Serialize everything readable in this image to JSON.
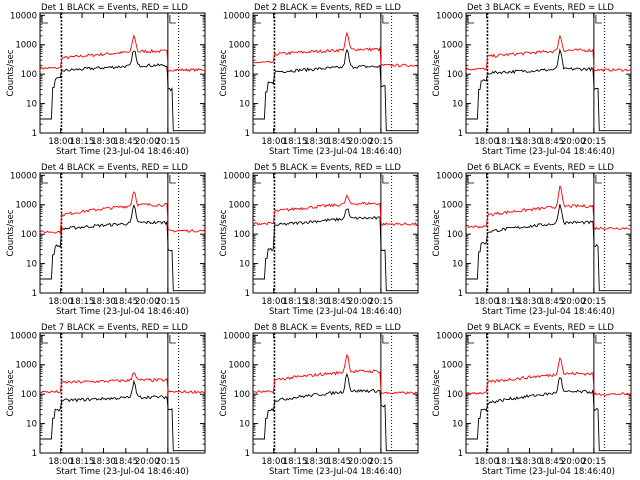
{
  "chart_data": {
    "type": "line",
    "layout": "3x3 grid of detector panels",
    "xlabel": "Start Time (23-Jul-04 18:46:40)",
    "ylabel": "Counts/sec",
    "yscale": "log",
    "ylim": [
      1,
      12000
    ],
    "ytick_labels": [
      "1",
      "10",
      "100",
      "1000",
      "10000"
    ],
    "ytick_values": [
      1,
      10,
      100,
      1000,
      10000
    ],
    "xtick_labels": [
      "18:00",
      "18:15",
      "18:30",
      "18:45",
      "20:00",
      "20:15"
    ],
    "legend_text": "BLACK = Events, RED = LLD",
    "series_colors": {
      "events": "#000000",
      "lld": "#ff0000"
    },
    "panels": [
      {
        "title": "Det 1",
        "events": {
          "pre": 70,
          "base": 130,
          "mid": 200,
          "peak": 700,
          "post": 30
        },
        "lld": {
          "pre": 160,
          "base": 350,
          "mid": 600,
          "peak": 2000,
          "post": 140
        }
      },
      {
        "title": "Det 2",
        "events": {
          "pre": 50,
          "base": 120,
          "mid": 180,
          "peak": 650,
          "post": 40
        },
        "lld": {
          "pre": 250,
          "base": 480,
          "mid": 700,
          "peak": 2300,
          "post": 200
        }
      },
      {
        "title": "Det 3",
        "events": {
          "pre": 60,
          "base": 110,
          "mid": 150,
          "peak": 600,
          "post": 30
        },
        "lld": {
          "pre": 150,
          "base": 400,
          "mid": 650,
          "peak": 2000,
          "post": 140
        }
      },
      {
        "title": "Det 4",
        "events": {
          "pre": 40,
          "base": 150,
          "mid": 250,
          "peak": 900,
          "post": 30
        },
        "lld": {
          "pre": 120,
          "base": 450,
          "mid": 1000,
          "peak": 3000,
          "post": 130
        }
      },
      {
        "title": "Det 5",
        "events": {
          "pre": 30,
          "base": 200,
          "mid": 350,
          "peak": 800,
          "post": 30
        },
        "lld": {
          "pre": 230,
          "base": 600,
          "mid": 1100,
          "peak": 2000,
          "post": 220
        }
      },
      {
        "title": "Det 6",
        "events": {
          "pre": 50,
          "base": 120,
          "mid": 250,
          "peak": 1000,
          "post": 40
        },
        "lld": {
          "pre": 180,
          "base": 450,
          "mid": 900,
          "peak": 4000,
          "post": 160
        }
      },
      {
        "title": "Det 7",
        "events": {
          "pre": 30,
          "base": 60,
          "mid": 80,
          "peak": 250,
          "post": 30
        },
        "lld": {
          "pre": 120,
          "base": 250,
          "mid": 300,
          "peak": 600,
          "post": 120
        }
      },
      {
        "title": "Det 8",
        "events": {
          "pre": 30,
          "base": 60,
          "mid": 130,
          "peak": 500,
          "post": 40
        },
        "lld": {
          "pre": 120,
          "base": 300,
          "mid": 600,
          "peak": 2200,
          "post": 110
        }
      },
      {
        "title": "Det 9",
        "events": {
          "pre": 30,
          "base": 50,
          "mid": 120,
          "peak": 400,
          "post": 30
        },
        "lld": {
          "pre": 110,
          "base": 250,
          "mid": 500,
          "peak": 1800,
          "post": 100
        }
      }
    ]
  }
}
